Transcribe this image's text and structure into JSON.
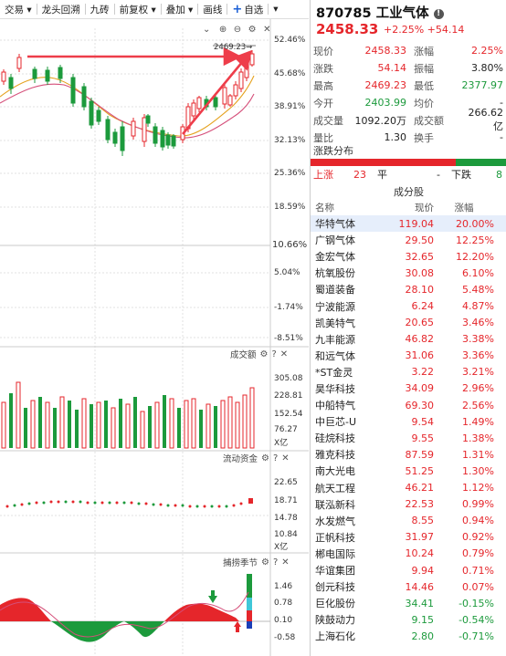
{
  "toolbar": {
    "items": [
      "交易 ▾",
      "龙头回溯",
      "九砖",
      "前复权 ▾",
      "叠加 ▾",
      "画线",
      "自选",
      "▾"
    ],
    "add_icon": "plus-icon"
  },
  "main_chart": {
    "y_labels": [
      "52.46%",
      "45.68%",
      "38.91%",
      "32.13%",
      "25.36%",
      "18.59%",
      "10.66%",
      "5.04%",
      "-1.74%",
      "-8.51%"
    ],
    "peak_label": "2469.23→",
    "icons": [
      "chevron-down-icon",
      "plus-icon",
      "minus-icon",
      "settings-icon",
      "close-icon"
    ]
  },
  "volume": {
    "title": "成交额",
    "y_labels": [
      "305.08",
      "228.81",
      "152.54",
      "76.27"
    ],
    "unit": "X亿"
  },
  "capital": {
    "title": "流动资金",
    "y_labels": [
      "22.65",
      "18.71",
      "14.78",
      "10.84"
    ],
    "unit": "X亿"
  },
  "season": {
    "title": "捕捞季节",
    "y_labels": [
      "1.46",
      "0.78",
      "0.10",
      "-0.58"
    ]
  },
  "quote": {
    "code": "870785",
    "name": "工业气体",
    "price": "2458.33",
    "change": "+2.25%  +54.14",
    "rows": [
      {
        "k1": "现价",
        "v1": "2458.33",
        "c1": "red",
        "k2": "涨幅",
        "v2": "2.25%",
        "c2": "red"
      },
      {
        "k1": "涨跌",
        "v1": "54.14",
        "c1": "red",
        "k2": "振幅",
        "v2": "3.80%",
        "c2": ""
      },
      {
        "k1": "最高",
        "v1": "2469.23",
        "c1": "red",
        "k2": "最低",
        "v2": "2377.97",
        "c2": "green"
      },
      {
        "k1": "今开",
        "v1": "2403.99",
        "c1": "green",
        "k2": "均价",
        "v2": "-",
        "c2": ""
      },
      {
        "k1": "成交量",
        "v1": "1092.20万",
        "c1": "",
        "k2": "成交额",
        "v2": "266.62亿",
        "c2": ""
      },
      {
        "k1": "量比",
        "v1": "1.30",
        "c1": "",
        "k2": "换手",
        "v2": "-",
        "c2": ""
      }
    ]
  },
  "distribution": {
    "title": "涨跌分布",
    "up_label": "上涨",
    "up_count": "23",
    "flat_label": "平",
    "flat_count": "-",
    "down_label": "下跌",
    "down_count": "8",
    "up_ratio": 0.74,
    "down_ratio": 0.26
  },
  "components": {
    "title": "成分股",
    "headers": [
      "名称",
      "现价",
      "涨幅"
    ],
    "rows": [
      {
        "name": "华特气体",
        "price": "119.04",
        "pct": "20.00%",
        "color": "red"
      },
      {
        "name": "广钢气体",
        "price": "29.50",
        "pct": "12.25%",
        "color": "red"
      },
      {
        "name": "金宏气体",
        "price": "32.65",
        "pct": "12.20%",
        "color": "red"
      },
      {
        "name": "杭氧股份",
        "price": "30.08",
        "pct": "6.10%",
        "color": "red"
      },
      {
        "name": "蜀道装备",
        "price": "28.10",
        "pct": "5.48%",
        "color": "red"
      },
      {
        "name": "宁波能源",
        "price": "6.24",
        "pct": "4.87%",
        "color": "red"
      },
      {
        "name": "凯美特气",
        "price": "20.65",
        "pct": "3.46%",
        "color": "red"
      },
      {
        "name": "九丰能源",
        "price": "46.82",
        "pct": "3.38%",
        "color": "red"
      },
      {
        "name": "和远气体",
        "price": "31.06",
        "pct": "3.36%",
        "color": "red"
      },
      {
        "name": "*ST金灵",
        "price": "3.22",
        "pct": "3.21%",
        "color": "red"
      },
      {
        "name": "昊华科技",
        "price": "34.09",
        "pct": "2.96%",
        "color": "red"
      },
      {
        "name": "中船特气",
        "price": "69.30",
        "pct": "2.56%",
        "color": "red"
      },
      {
        "name": "中巨芯-U",
        "price": "9.54",
        "pct": "1.49%",
        "color": "red"
      },
      {
        "name": "硅烷科技",
        "price": "9.55",
        "pct": "1.38%",
        "color": "red"
      },
      {
        "name": "雅克科技",
        "price": "87.59",
        "pct": "1.31%",
        "color": "red"
      },
      {
        "name": "南大光电",
        "price": "51.25",
        "pct": "1.30%",
        "color": "red"
      },
      {
        "name": "航天工程",
        "price": "46.21",
        "pct": "1.12%",
        "color": "red"
      },
      {
        "name": "联泓新科",
        "price": "22.53",
        "pct": "0.99%",
        "color": "red"
      },
      {
        "name": "水发燃气",
        "price": "8.55",
        "pct": "0.94%",
        "color": "red"
      },
      {
        "name": "正帆科技",
        "price": "31.97",
        "pct": "0.92%",
        "color": "red"
      },
      {
        "name": "郴电国际",
        "price": "10.24",
        "pct": "0.79%",
        "color": "red"
      },
      {
        "name": "华谊集团",
        "price": "9.94",
        "pct": "0.71%",
        "color": "red"
      },
      {
        "name": "创元科技",
        "price": "14.46",
        "pct": "0.07%",
        "color": "red"
      },
      {
        "name": "巨化股份",
        "price": "34.41",
        "pct": "-0.15%",
        "color": "green"
      },
      {
        "name": "陕鼓动力",
        "price": "9.15",
        "pct": "-0.54%",
        "color": "green"
      },
      {
        "name": "上海石化",
        "price": "2.80",
        "pct": "-0.71%",
        "color": "green"
      }
    ]
  },
  "colors": {
    "up": "#e5262b",
    "down": "#1c9a3c",
    "accent": "#1a5fd6"
  }
}
